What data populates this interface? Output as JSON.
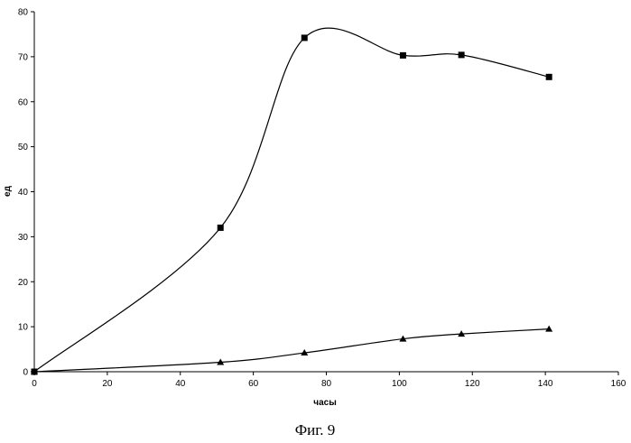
{
  "chart_data": {
    "type": "line",
    "xlabel": "часы",
    "ylabel": "ед",
    "xlim": [
      0,
      160
    ],
    "ylim": [
      0,
      80
    ],
    "xticks": [
      0,
      20,
      40,
      60,
      80,
      100,
      120,
      140,
      160
    ],
    "yticks": [
      0,
      10,
      20,
      30,
      40,
      50,
      60,
      70,
      80
    ],
    "grid": false,
    "smooth": true,
    "series": [
      {
        "marker": "square",
        "color": "#000000",
        "x": [
          0,
          51,
          74,
          101,
          117,
          141
        ],
        "y": [
          0,
          32,
          74.2,
          70.3,
          70.4,
          65.5
        ]
      },
      {
        "marker": "triangle",
        "color": "#000000",
        "x": [
          0,
          51,
          74,
          101,
          117,
          141
        ],
        "y": [
          0,
          2.1,
          4.2,
          7.3,
          8.4,
          9.5
        ]
      }
    ]
  },
  "caption": "Фиг. 9"
}
